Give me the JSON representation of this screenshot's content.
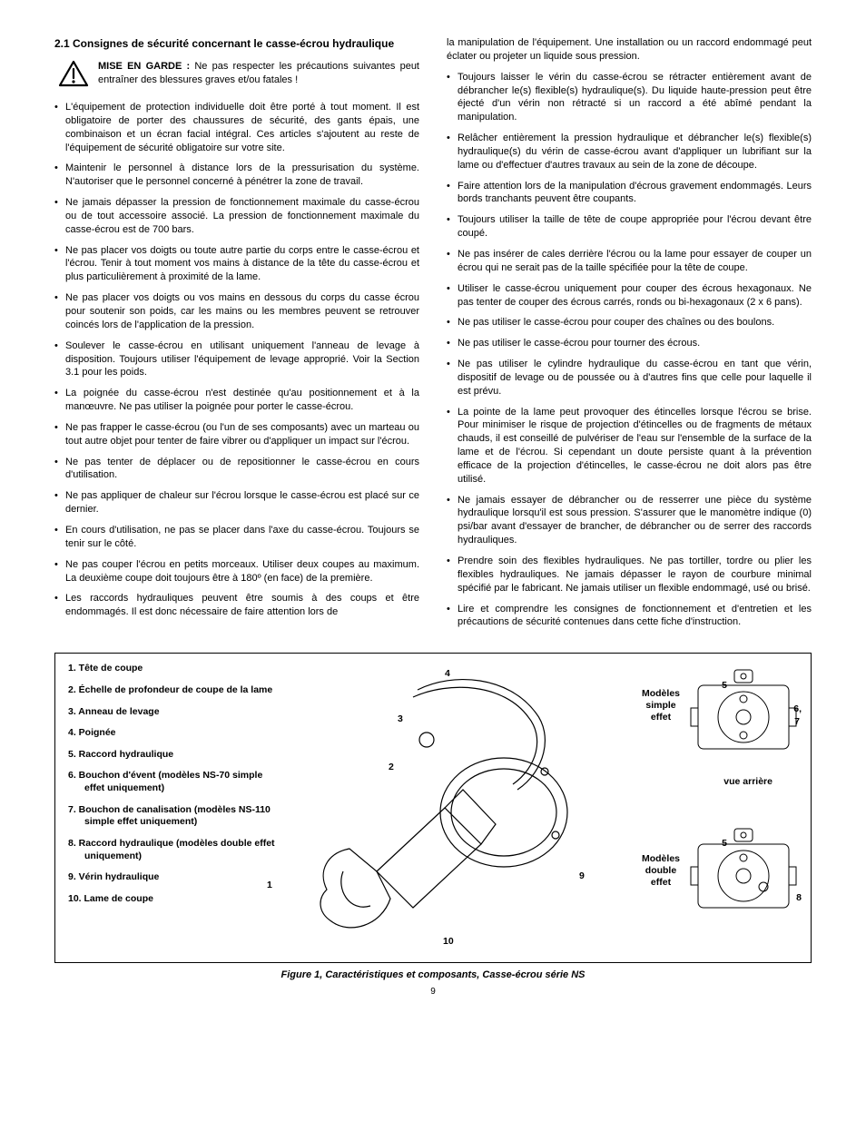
{
  "section_heading": "2.1  Consignes de sécurité concernant le casse-écrou hydraulique",
  "warning": {
    "label": "MISE EN GARDE :",
    "text": "Ne pas respecter les précautions suivantes peut entraîner des blessures graves et/ou fatales !"
  },
  "col_left": [
    "L'équipement de protection individuelle doit être porté à tout moment. Il est obligatoire de porter des chaussures de sécurité, des gants épais, une combinaison et un écran facial intégral. Ces articles s'ajoutent au reste de l'équipement de sécurité obligatoire sur votre site.",
    "Maintenir le personnel à distance lors de la pressurisation du système. N'autoriser que le personnel concerné à pénétrer la zone de travail.",
    "Ne jamais dépasser la pression de fonctionnement maximale du casse-écrou ou de tout accessoire associé. La pression de fonctionnement maximale du casse-écrou est de 700 bars.",
    "Ne pas placer vos doigts ou toute autre partie du corps entre le casse-écrou et l'écrou. Tenir à tout moment vos mains à distance de la tête du casse-écrou et plus particulièrement à proximité de la lame.",
    "Ne pas placer vos doigts ou vos mains en dessous du corps du casse écrou pour soutenir son poids, car les mains ou les membres peuvent se retrouver coincés lors de l'application de la pression.",
    "Soulever le casse-écrou en utilisant uniquement l'anneau de levage à disposition. Toujours utiliser l'équipement de levage approprié. Voir la Section 3.1 pour les poids.",
    "La poignée du casse-écrou n'est destinée qu'au positionnement et à la manœuvre. Ne pas utiliser la poignée pour porter le casse-écrou.",
    "Ne pas frapper le casse-écrou (ou l'un de ses composants) avec un marteau ou tout autre objet pour tenter de faire vibrer ou d'appliquer un impact sur l'écrou.",
    "Ne pas tenter de déplacer ou de repositionner le casse-écrou en cours d'utilisation.",
    "Ne pas appliquer de chaleur sur l'écrou lorsque le casse-écrou est placé sur ce dernier.",
    "En cours d'utilisation, ne pas se placer dans l'axe du casse-écrou. Toujours se tenir sur le côté.",
    "Ne pas couper l'écrou en petits morceaux. Utiliser deux coupes au maximum. La deuxième coupe doit toujours être à 180º (en face) de la première.",
    "Les raccords hydrauliques peuvent être soumis à des coups et être endommagés. Il est donc nécessaire de faire attention lors de"
  ],
  "col_right": [
    "la manipulation de l'équipement. Une installation ou un raccord endommagé peut éclater ou projeter un liquide sous pression.",
    "Toujours laisser le vérin du casse-écrou se rétracter entièrement avant de débrancher le(s) flexible(s) hydraulique(s). Du liquide haute-pression peut être éjecté d'un vérin non rétracté si un raccord a été abîmé pendant la manipulation.",
    "Relâcher entièrement la pression hydraulique et débrancher le(s) flexible(s) hydraulique(s) du vérin de casse-écrou avant d'appliquer un lubrifiant sur la lame ou d'effectuer d'autres travaux au sein de la zone de découpe.",
    "Faire attention lors de la manipulation d'écrous gravement endommagés. Leurs bords tranchants peuvent être coupants.",
    "Toujours utiliser la taille de tête de coupe appropriée pour l'écrou devant être coupé.",
    "Ne pas insérer de cales derrière l'écrou ou la lame pour essayer de couper un écrou qui ne serait pas de la taille spécifiée pour la tête de coupe.",
    "Utiliser le casse-écrou uniquement pour couper des écrous hexagonaux. Ne pas tenter de couper des écrous carrés, ronds ou bi-hexagonaux (2 x 6 pans).",
    "Ne pas utiliser le casse-écrou pour couper des chaînes ou des boulons.",
    "Ne pas utiliser le casse-écrou pour tourner des écrous.",
    "Ne pas utiliser le cylindre hydraulique du casse-écrou en tant que vérin, dispositif de levage ou de poussée ou à d'autres fins que celle pour laquelle il est prévu.",
    "La pointe de la lame peut provoquer des étincelles lorsque l'écrou se brise. Pour minimiser le risque de projection d'étincelles ou de fragments de métaux chauds, il est conseillé de pulvériser de l'eau sur l'ensemble de la surface de la lame et de l'écrou. Si cependant un doute persiste quant à la prévention efficace de la projection d'étincelles, le casse-écrou ne doit alors pas être utilisé.",
    "Ne jamais essayer de débrancher ou de resserrer une pièce du système hydraulique lorsqu'il est sous pression. S'assurer que le manomètre indique (0) psi/bar avant d'essayer de brancher, de débrancher ou de serrer des raccords hydrauliques.",
    "Prendre soin des flexibles hydrauliques. Ne pas tortiller, tordre ou plier les flexibles hydrauliques. Ne jamais dépasser le rayon de courbure minimal spécifié par le fabricant. Ne jamais utiliser un flexible endommagé, usé ou brisé.",
    "Lire et comprendre les consignes de fonctionnement et d'entretien et les précautions de sécurité contenues dans cette fiche d'instruction."
  ],
  "figure": {
    "parts": [
      "1. Tête de coupe",
      "2. Échelle de profondeur de coupe de la lame",
      "3. Anneau de levage",
      "4. Poignée",
      "5. Raccord hydraulique",
      "6. Bouchon d'évent (modèles NS-70 simple effet uniquement)",
      "7. Bouchon de canalisation (modèles NS-110 simple effet uniquement)",
      "8. Raccord hydraulique (modèles double effet uniquement)",
      "9. Vérin hydraulique",
      "10. Lame de coupe"
    ],
    "callouts": {
      "c1": "1",
      "c2": "2",
      "c3": "3",
      "c4": "4",
      "c5a": "5",
      "c5b": "5",
      "c6": "6,",
      "c7": "7",
      "c8": "8",
      "c9": "9",
      "c10": "10"
    },
    "labels": {
      "simple_l1": "Modèles",
      "simple_l2": "simple",
      "simple_l3": "effet",
      "rear": "vue arrière",
      "double_l1": "Modèles",
      "double_l2": "double",
      "double_l3": "effet"
    },
    "caption": "Figure 1, Caractéristiques et composants, Casse-écrou série NS"
  },
  "page_number": "9",
  "colors": {
    "text": "#000000",
    "bg": "#ffffff",
    "line": "#000000"
  }
}
